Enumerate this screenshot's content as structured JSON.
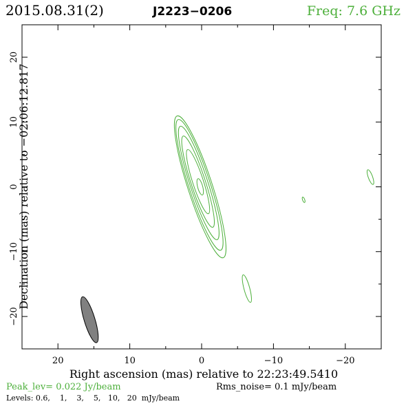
{
  "chart_data": {
    "type": "contour",
    "header": {
      "date": "2015.08.31(2)",
      "source": "J2223−0206",
      "freq": "Freq: 7.6 GHz"
    },
    "xlabel": "Right ascension (mas) relative to 22:23:49.5410",
    "ylabel": "Declination (mas) relative to −02:06:12.817",
    "xlim": [
      25,
      -25
    ],
    "ylim": [
      -25,
      25
    ],
    "x_ticks": [
      {
        "value": 20,
        "label": "20"
      },
      {
        "value": 10,
        "label": "10"
      },
      {
        "value": 0,
        "label": "0"
      },
      {
        "value": -10,
        "label": "−10"
      },
      {
        "value": -20,
        "label": "−20"
      }
    ],
    "y_ticks": [
      {
        "value": 20,
        "label": "20"
      },
      {
        "value": 10,
        "label": "10"
      },
      {
        "value": 0,
        "label": "0"
      },
      {
        "value": -10,
        "label": "−10"
      },
      {
        "value": -20,
        "label": "−20"
      }
    ],
    "contour_color": "#4caf3a",
    "beam_color": "#808080",
    "contours": [
      {
        "cx": 0.2,
        "cy": 0.0,
        "a": 11.5,
        "b": 1.7,
        "pa": -18
      },
      {
        "cx": 0.3,
        "cy": 0.3,
        "a": 10.6,
        "b": 1.5,
        "pa": -18
      },
      {
        "cx": 0.4,
        "cy": 0.6,
        "a": 9.2,
        "b": 1.25,
        "pa": -18
      },
      {
        "cx": 0.5,
        "cy": 0.8,
        "a": 7.4,
        "b": 1.0,
        "pa": -18
      },
      {
        "cx": 0.5,
        "cy": 0.8,
        "a": 5.2,
        "b": 0.75,
        "pa": -18
      },
      {
        "cx": 0.2,
        "cy": 0.0,
        "a": 1.3,
        "b": 0.35,
        "pa": -15
      },
      {
        "cx": -6.3,
        "cy": -15.7,
        "a": 2.2,
        "b": 0.4,
        "pa": -15
      },
      {
        "cx": -23.5,
        "cy": 1.5,
        "a": 1.2,
        "b": 0.3,
        "pa": -20
      },
      {
        "cx": -14.2,
        "cy": -2.0,
        "a": 0.45,
        "b": 0.15,
        "pa": -20
      }
    ],
    "beam": {
      "cx": 15.6,
      "cy": -20.5,
      "a": 3.7,
      "b": 0.75,
      "pa": -17
    },
    "footer": {
      "peak": "Peak_lev=  0.022 Jy/beam",
      "rms": "Rms_noise=   0.1 mJy/beam",
      "levels": "Levels: 0.6,    1,    3,    5,   10,   20  mJy/beam"
    }
  }
}
